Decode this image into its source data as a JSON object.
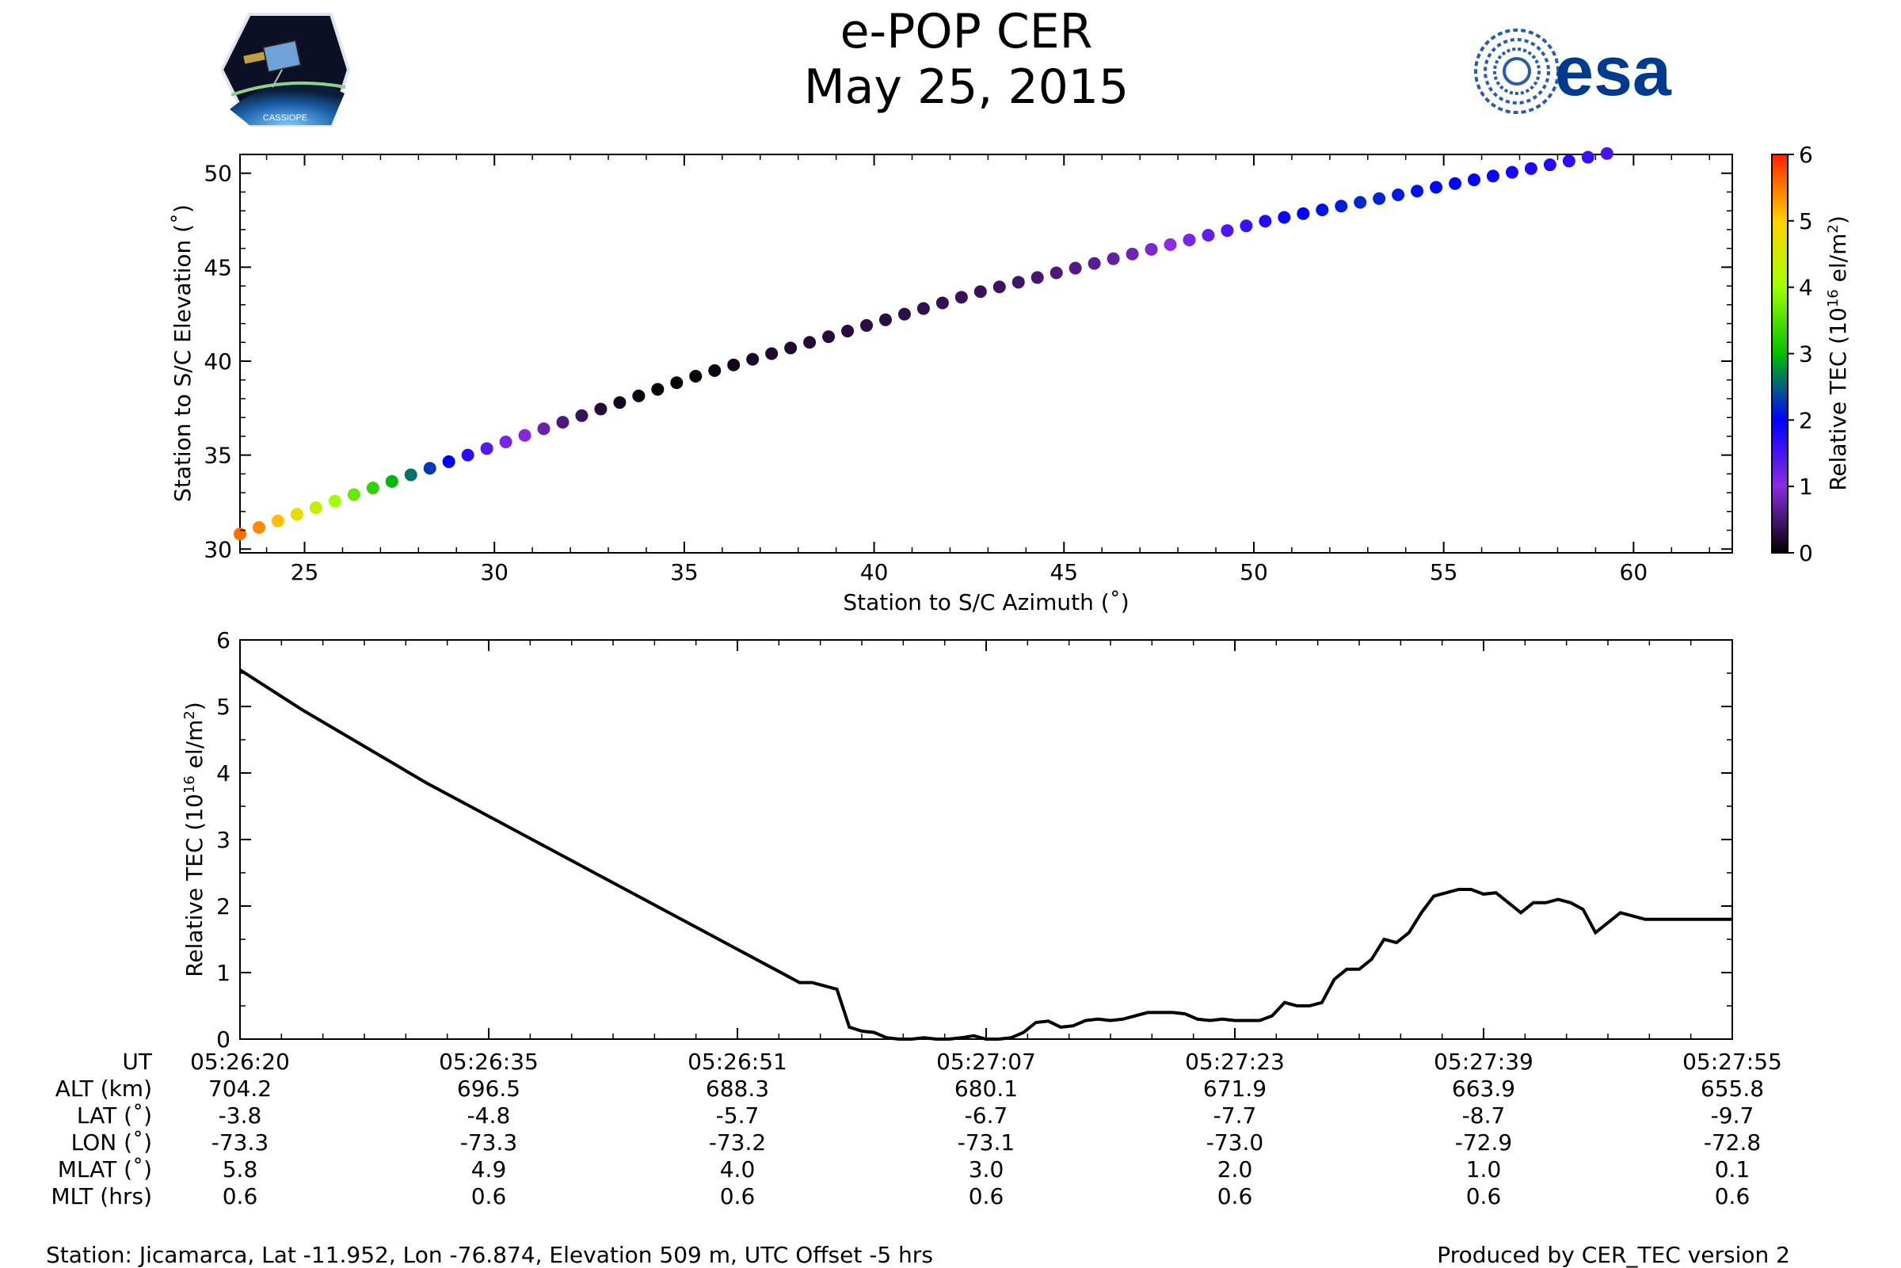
{
  "header": {
    "title": "e-POP CER",
    "date": "May 25, 2015",
    "left_logo_text": "CASSIOPE",
    "right_logo_text": "esa"
  },
  "colors": {
    "esa_blue": "#003a8c",
    "line": "#000000"
  },
  "chart_data": [
    {
      "type": "scatter",
      "title": "",
      "xlabel": "Station to S/C Azimuth (˚)",
      "ylabel": "Station to S/C Elevation (˚)",
      "xlim": [
        23.3,
        62.6
      ],
      "ylim": [
        29.8,
        51.0
      ],
      "xticks": [
        25,
        30,
        35,
        40,
        45,
        50,
        55,
        60
      ],
      "yticks": [
        30,
        35,
        40,
        45,
        50
      ],
      "colorbar": {
        "label": "Relative TEC (10¹⁶ el/m²)",
        "label_base": "Relative TEC (10",
        "label_exp": "16",
        "label_unit": " el/m",
        "label_sq": "2",
        "label_close": ")",
        "range": [
          0,
          6
        ],
        "ticks": [
          0,
          1,
          2,
          3,
          4,
          5,
          6
        ],
        "colormap": "gnuplot-rainbow"
      },
      "points": [
        {
          "x": 23.3,
          "y": 30.8,
          "c": 5.55
        },
        {
          "x": 23.8,
          "y": 31.15,
          "c": 5.4
        },
        {
          "x": 24.3,
          "y": 31.5,
          "c": 5.1
        },
        {
          "x": 24.8,
          "y": 31.85,
          "c": 4.75
        },
        {
          "x": 25.3,
          "y": 32.2,
          "c": 4.35
        },
        {
          "x": 25.8,
          "y": 32.55,
          "c": 4.0
        },
        {
          "x": 26.3,
          "y": 32.9,
          "c": 3.65
        },
        {
          "x": 26.8,
          "y": 33.25,
          "c": 3.3
        },
        {
          "x": 27.3,
          "y": 33.6,
          "c": 2.95
        },
        {
          "x": 27.8,
          "y": 33.95,
          "c": 2.6
        },
        {
          "x": 28.3,
          "y": 34.3,
          "c": 2.3
        },
        {
          "x": 28.8,
          "y": 34.65,
          "c": 2.0
        },
        {
          "x": 29.3,
          "y": 35.0,
          "c": 1.7
        },
        {
          "x": 29.8,
          "y": 35.35,
          "c": 1.4
        },
        {
          "x": 30.3,
          "y": 35.7,
          "c": 1.15
        },
        {
          "x": 30.8,
          "y": 36.05,
          "c": 0.95
        },
        {
          "x": 31.3,
          "y": 36.4,
          "c": 0.75
        },
        {
          "x": 31.8,
          "y": 36.75,
          "c": 0.55
        },
        {
          "x": 32.3,
          "y": 37.1,
          "c": 0.4
        },
        {
          "x": 32.8,
          "y": 37.45,
          "c": 0.25
        },
        {
          "x": 33.3,
          "y": 37.8,
          "c": 0.15
        },
        {
          "x": 33.8,
          "y": 38.15,
          "c": 0.08
        },
        {
          "x": 34.3,
          "y": 38.5,
          "c": 0.03
        },
        {
          "x": 34.8,
          "y": 38.85,
          "c": 0.02
        },
        {
          "x": 35.3,
          "y": 39.2,
          "c": 0.03
        },
        {
          "x": 35.8,
          "y": 39.5,
          "c": 0.08
        },
        {
          "x": 36.3,
          "y": 39.8,
          "c": 0.12
        },
        {
          "x": 36.8,
          "y": 40.1,
          "c": 0.18
        },
        {
          "x": 37.3,
          "y": 40.4,
          "c": 0.2
        },
        {
          "x": 37.8,
          "y": 40.7,
          "c": 0.22
        },
        {
          "x": 38.3,
          "y": 41.0,
          "c": 0.24
        },
        {
          "x": 38.8,
          "y": 41.3,
          "c": 0.26
        },
        {
          "x": 39.3,
          "y": 41.6,
          "c": 0.28
        },
        {
          "x": 39.8,
          "y": 41.9,
          "c": 0.3
        },
        {
          "x": 40.3,
          "y": 42.2,
          "c": 0.3
        },
        {
          "x": 40.8,
          "y": 42.5,
          "c": 0.32
        },
        {
          "x": 41.3,
          "y": 42.8,
          "c": 0.34
        },
        {
          "x": 41.8,
          "y": 43.1,
          "c": 0.36
        },
        {
          "x": 42.3,
          "y": 43.4,
          "c": 0.38
        },
        {
          "x": 42.8,
          "y": 43.7,
          "c": 0.4
        },
        {
          "x": 43.3,
          "y": 43.95,
          "c": 0.42
        },
        {
          "x": 43.8,
          "y": 44.2,
          "c": 0.45
        },
        {
          "x": 44.3,
          "y": 44.45,
          "c": 0.5
        },
        {
          "x": 44.8,
          "y": 44.7,
          "c": 0.55
        },
        {
          "x": 45.3,
          "y": 44.95,
          "c": 0.6
        },
        {
          "x": 45.8,
          "y": 45.2,
          "c": 0.65
        },
        {
          "x": 46.3,
          "y": 45.45,
          "c": 0.72
        },
        {
          "x": 46.8,
          "y": 45.7,
          "c": 0.8
        },
        {
          "x": 47.3,
          "y": 45.95,
          "c": 0.9
        },
        {
          "x": 47.8,
          "y": 46.2,
          "c": 1.0
        },
        {
          "x": 48.3,
          "y": 46.45,
          "c": 1.15
        },
        {
          "x": 48.8,
          "y": 46.7,
          "c": 1.3
        },
        {
          "x": 49.3,
          "y": 46.95,
          "c": 1.45
        },
        {
          "x": 49.8,
          "y": 47.2,
          "c": 1.6
        },
        {
          "x": 50.3,
          "y": 47.45,
          "c": 1.75
        },
        {
          "x": 50.8,
          "y": 47.65,
          "c": 1.9
        },
        {
          "x": 51.3,
          "y": 47.85,
          "c": 2.0
        },
        {
          "x": 51.8,
          "y": 48.05,
          "c": 2.1
        },
        {
          "x": 52.3,
          "y": 48.25,
          "c": 2.15
        },
        {
          "x": 52.8,
          "y": 48.45,
          "c": 2.2
        },
        {
          "x": 53.3,
          "y": 48.65,
          "c": 2.2
        },
        {
          "x": 53.8,
          "y": 48.85,
          "c": 2.15
        },
        {
          "x": 54.3,
          "y": 49.05,
          "c": 2.1
        },
        {
          "x": 54.8,
          "y": 49.25,
          "c": 2.05
        },
        {
          "x": 55.3,
          "y": 49.45,
          "c": 2.0
        },
        {
          "x": 55.8,
          "y": 49.65,
          "c": 1.95
        },
        {
          "x": 56.3,
          "y": 49.85,
          "c": 1.9
        },
        {
          "x": 56.8,
          "y": 50.05,
          "c": 1.85
        },
        {
          "x": 57.3,
          "y": 50.25,
          "c": 1.8
        },
        {
          "x": 57.8,
          "y": 50.45,
          "c": 1.75
        },
        {
          "x": 58.3,
          "y": 50.65,
          "c": 1.7
        },
        {
          "x": 58.8,
          "y": 50.85,
          "c": 1.6
        },
        {
          "x": 59.3,
          "y": 51.05,
          "c": 1.5
        }
      ]
    },
    {
      "type": "line",
      "title": "",
      "xlabel": "",
      "ylabel": "Relative TEC (10¹⁶ el/m²)",
      "ylabel_base": "Relative TEC (10",
      "ylabel_exp": "16",
      "ylabel_unit": " el/m",
      "ylabel_sq": "2",
      "ylabel_close": ")",
      "xlim": [
        0,
        120
      ],
      "ylim": [
        0,
        6
      ],
      "yticks": [
        0,
        1,
        2,
        3,
        4,
        5,
        6
      ],
      "series": [
        {
          "name": "Relative TEC",
          "x": [
            0,
            5,
            10,
            15,
            20,
            25,
            30,
            35,
            40,
            43,
            45,
            46,
            47,
            48,
            49,
            50,
            51,
            52,
            53,
            54,
            55,
            56,
            57,
            58,
            59,
            60,
            61,
            62,
            63,
            64,
            65,
            66,
            67,
            68,
            69,
            70,
            71,
            72,
            73,
            74,
            75,
            76,
            77,
            78,
            79,
            80,
            81,
            82,
            83,
            84,
            85,
            86,
            87,
            88,
            89,
            90,
            91,
            92,
            93,
            94,
            95,
            96,
            97,
            98,
            99,
            100,
            101,
            102,
            103,
            104,
            105,
            106,
            107,
            108,
            109,
            110,
            111,
            112,
            113,
            114,
            115,
            116,
            117,
            118,
            119,
            120
          ],
          "y": [
            5.55,
            4.95,
            4.4,
            3.85,
            3.35,
            2.85,
            2.35,
            1.85,
            1.35,
            1.05,
            0.85,
            0.85,
            0.8,
            0.75,
            0.18,
            0.12,
            0.1,
            0.02,
            0.0,
            0.0,
            0.02,
            0.0,
            0.0,
            0.02,
            0.05,
            0.0,
            0.0,
            0.02,
            0.1,
            0.25,
            0.27,
            0.18,
            0.2,
            0.28,
            0.3,
            0.28,
            0.3,
            0.35,
            0.4,
            0.4,
            0.4,
            0.38,
            0.3,
            0.28,
            0.3,
            0.28,
            0.28,
            0.28,
            0.35,
            0.55,
            0.5,
            0.5,
            0.55,
            0.9,
            1.05,
            1.05,
            1.2,
            1.5,
            1.45,
            1.6,
            1.9,
            2.15,
            2.2,
            2.25,
            2.25,
            2.18,
            2.2,
            2.05,
            1.9,
            2.05,
            2.05,
            2.1,
            2.05,
            1.95,
            1.6,
            1.75,
            1.9,
            1.85,
            1.8,
            1.8,
            1.8,
            1.8,
            1.8,
            1.8,
            1.8,
            1.8
          ]
        }
      ],
      "grid": false
    }
  ],
  "bottom_table": {
    "row_labels": [
      "UT",
      "ALT (km)",
      "LAT (˚)",
      "LON (˚)",
      "MLAT (˚)",
      "MLT (hrs)"
    ],
    "columns": [
      {
        "ut": "05:26:20",
        "alt": "704.2",
        "lat": "-3.8",
        "lon": "-73.3",
        "mlat": "5.8",
        "mlt": "0.6"
      },
      {
        "ut": "05:26:35",
        "alt": "696.5",
        "lat": "-4.8",
        "lon": "-73.3",
        "mlat": "4.9",
        "mlt": "0.6"
      },
      {
        "ut": "05:26:51",
        "alt": "688.3",
        "lat": "-5.7",
        "lon": "-73.2",
        "mlat": "4.0",
        "mlt": "0.6"
      },
      {
        "ut": "05:27:07",
        "alt": "680.1",
        "lat": "-6.7",
        "lon": "-73.1",
        "mlat": "3.0",
        "mlt": "0.6"
      },
      {
        "ut": "05:27:23",
        "alt": "671.9",
        "lat": "-7.7",
        "lon": "-73.0",
        "mlat": "2.0",
        "mlt": "0.6"
      },
      {
        "ut": "05:27:39",
        "alt": "663.9",
        "lat": "-8.7",
        "lon": "-72.9",
        "mlat": "1.0",
        "mlt": "0.6"
      },
      {
        "ut": "05:27:55",
        "alt": "655.8",
        "lat": "-9.7",
        "lon": "-72.8",
        "mlat": "0.1",
        "mlt": "0.6"
      }
    ]
  },
  "footer": {
    "left": "Station: Jicamarca, Lat -11.952, Lon -76.874, Elevation 509 m, UTC Offset -5 hrs",
    "right": "Produced by CER_TEC version 2"
  }
}
